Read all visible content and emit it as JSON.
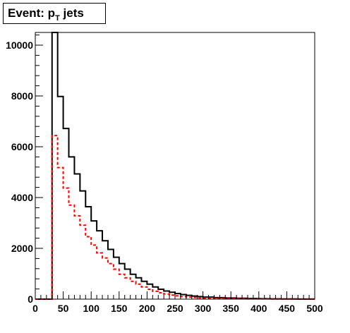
{
  "chart_data": {
    "type": "histogram",
    "title_main": "Event: p",
    "title_sub": "T",
    "title_tail": " jets",
    "xlabel": "",
    "ylabel": "",
    "xlim": [
      0,
      500
    ],
    "ylim": [
      0,
      10500
    ],
    "bin_width": 10,
    "x_ticks": [
      0,
      50,
      100,
      150,
      200,
      250,
      300,
      350,
      400,
      450,
      500
    ],
    "x_tick_labels": [
      "0",
      "50",
      "100",
      "150",
      "200",
      "250",
      "300",
      "350",
      "400",
      "450",
      "500"
    ],
    "y_ticks": [
      0,
      2000,
      4000,
      6000,
      8000,
      10000
    ],
    "y_tick_labels": [
      "0",
      "2000",
      "4000",
      "6000",
      "8000",
      "10000"
    ],
    "grid": false,
    "series": [
      {
        "style": "solid",
        "color": "#000000",
        "bins": [
          [
            20,
            30,
            0
          ],
          [
            30,
            40,
            10500
          ],
          [
            40,
            50,
            7980
          ],
          [
            50,
            60,
            6720
          ],
          [
            60,
            70,
            5600
          ],
          [
            70,
            80,
            4930
          ],
          [
            80,
            90,
            4260
          ],
          [
            90,
            100,
            3640
          ],
          [
            100,
            110,
            3080
          ],
          [
            110,
            120,
            2690
          ],
          [
            120,
            130,
            2300
          ],
          [
            130,
            140,
            1960
          ],
          [
            140,
            150,
            1650
          ],
          [
            150,
            160,
            1400
          ],
          [
            160,
            170,
            1180
          ],
          [
            170,
            180,
            980
          ],
          [
            180,
            190,
            840
          ],
          [
            190,
            200,
            700
          ],
          [
            200,
            210,
            590
          ],
          [
            210,
            220,
            480
          ],
          [
            220,
            230,
            390
          ],
          [
            230,
            240,
            320
          ],
          [
            240,
            250,
            270
          ],
          [
            250,
            260,
            220
          ],
          [
            260,
            270,
            180
          ],
          [
            270,
            280,
            150
          ],
          [
            280,
            290,
            120
          ],
          [
            290,
            300,
            100
          ],
          [
            300,
            320,
            80
          ],
          [
            320,
            340,
            60
          ],
          [
            340,
            360,
            45
          ],
          [
            360,
            380,
            35
          ],
          [
            380,
            400,
            25
          ],
          [
            400,
            420,
            18
          ],
          [
            420,
            440,
            12
          ],
          [
            440,
            470,
            8
          ],
          [
            470,
            500,
            5
          ]
        ]
      },
      {
        "style": "dashed",
        "color": "#ff0000",
        "bins": [
          [
            20,
            30,
            0
          ],
          [
            30,
            40,
            6440
          ],
          [
            40,
            50,
            5180
          ],
          [
            50,
            60,
            4370
          ],
          [
            60,
            70,
            3700
          ],
          [
            70,
            80,
            3280
          ],
          [
            80,
            90,
            2910
          ],
          [
            90,
            100,
            2460
          ],
          [
            100,
            110,
            2130
          ],
          [
            110,
            120,
            1820
          ],
          [
            120,
            130,
            1620
          ],
          [
            130,
            140,
            1400
          ],
          [
            140,
            150,
            1180
          ],
          [
            150,
            160,
            980
          ],
          [
            160,
            170,
            840
          ],
          [
            170,
            180,
            700
          ],
          [
            180,
            190,
            590
          ],
          [
            190,
            200,
            480
          ],
          [
            200,
            210,
            390
          ],
          [
            210,
            220,
            310
          ],
          [
            220,
            230,
            250
          ],
          [
            230,
            240,
            200
          ],
          [
            240,
            250,
            160
          ],
          [
            250,
            260,
            130
          ],
          [
            260,
            270,
            100
          ],
          [
            270,
            280,
            80
          ],
          [
            280,
            290,
            65
          ],
          [
            290,
            300,
            50
          ],
          [
            300,
            320,
            40
          ],
          [
            320,
            340,
            30
          ],
          [
            340,
            360,
            22
          ],
          [
            360,
            380,
            16
          ],
          [
            380,
            400,
            12
          ],
          [
            400,
            420,
            9
          ],
          [
            420,
            440,
            6
          ],
          [
            440,
            470,
            4
          ],
          [
            470,
            500,
            2
          ]
        ]
      }
    ]
  }
}
